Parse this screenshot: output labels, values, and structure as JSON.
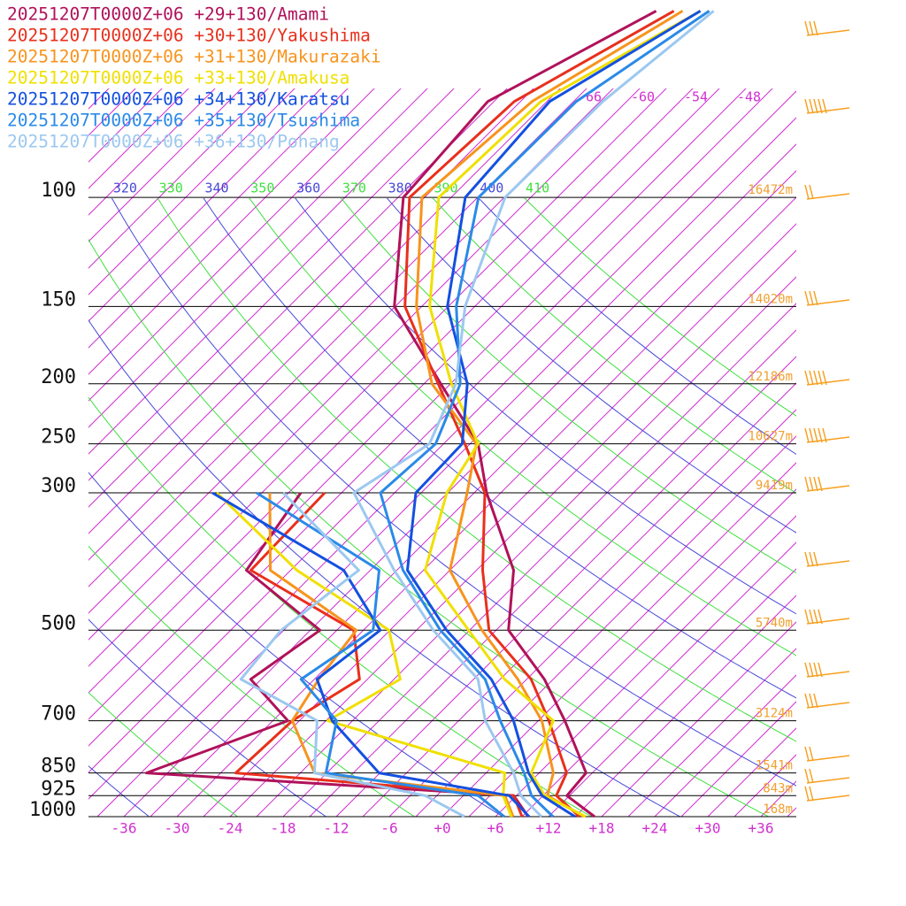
{
  "chart_data": {
    "type": "skewt",
    "ylim": [
      1000,
      48
    ],
    "log_y": true,
    "xlim": [
      -40,
      40
    ],
    "yticks": [
      100,
      150,
      200,
      250,
      300,
      500,
      700,
      850,
      925,
      1000
    ],
    "xticks": [
      -36,
      -30,
      -24,
      -18,
      -12,
      -6,
      {
        "value": 0,
        "label": "+0"
      },
      {
        "value": 6,
        "label": "+6"
      },
      {
        "value": 12,
        "label": "+12"
      },
      {
        "value": 18,
        "label": "+18"
      },
      {
        "value": 24,
        "label": "+24"
      },
      {
        "value": 30,
        "label": "+30"
      },
      {
        "value": 36,
        "label": "+36"
      }
    ],
    "isotherm_labels": [
      -66,
      -60,
      -54,
      -48
    ],
    "theta_labels": [
      320,
      330,
      340,
      350,
      360,
      370,
      380,
      390,
      400,
      410
    ],
    "theta_colors": [
      "#4848d8",
      "#40e040"
    ],
    "isotherm_color": "#d030d0",
    "height_labels": [
      {
        "value": 16472,
        "label": "16472m"
      },
      {
        "value": 14020,
        "label": "14020m"
      },
      {
        "value": 12186,
        "label": "12186m"
      },
      {
        "value": 10627,
        "label": "10627m"
      },
      {
        "value": 9419,
        "label": "9419m"
      },
      {
        "value": 5740,
        "label": "5740m"
      },
      {
        "value": 3124,
        "label": "3124m"
      },
      {
        "value": 1541,
        "label": "1541m"
      },
      {
        "value": 843,
        "label": "843m"
      },
      {
        "value": 168,
        "label": "168m"
      }
    ],
    "pressure_levels": [
      1000,
      925,
      850,
      700,
      600,
      500,
      400,
      300,
      250,
      200,
      150,
      100,
      70,
      50
    ],
    "dewpoint_levels": [
      1000,
      925,
      850,
      700,
      600,
      500,
      400,
      300
    ],
    "series": [
      {
        "name": "20251207T0000Z+06 +29+130/Amami",
        "color": "#b0125a",
        "temperature": [
          17.2,
          11.7,
          11.3,
          3.0,
          -4.0,
          -13.6,
          -19.8,
          -31.6,
          -38.1,
          -49.1,
          -63.1,
          -74.4,
          -75.7,
          -66.9
        ],
        "dewpoint": [
          9.7,
          5.7,
          -38.4,
          -28.3,
          -37.2,
          -34.9,
          -50.0,
          -52.6
        ]
      },
      {
        "name": "20251207T0000Z+06 +30+130/Yakushima",
        "color": "#e8301c",
        "temperature": [
          15.5,
          10.5,
          9.1,
          1.2,
          -5.5,
          -15.8,
          -23.3,
          -31.8,
          -39.6,
          -49.4,
          -61.9,
          -73.7,
          -72.7,
          -64.9
        ],
        "dewpoint": [
          9.0,
          5.7,
          -28.3,
          -27.8,
          -24.9,
          -31.1,
          -49.5,
          -49.9
        ]
      },
      {
        "name": "20251207T0000Z+06 +31+130/Makurazaki",
        "color": "#f7941d",
        "temperature": [
          16.0,
          9.5,
          7.6,
          0.4,
          -7.0,
          -16.6,
          -27.0,
          -33.8,
          -38.3,
          -50.1,
          -60.6,
          -72.3,
          -70.7,
          -63.9
        ],
        "dewpoint": [
          8.0,
          4.7,
          -19.4,
          -27.8,
          -29.5,
          -30.8,
          -47.3,
          -56.1
        ]
      },
      {
        "name": "20251207T0000Z+06 +33+130/Amakusa",
        "color": "#f0e000",
        "temperature": [
          16.2,
          9.2,
          5.1,
          1.7,
          -8.5,
          -18.1,
          -29.8,
          -36.1,
          -38.1,
          -47.9,
          -59.1,
          -70.4,
          -69.7,
          -61.9
        ],
        "dewpoint": [
          7.8,
          4.5,
          2.1,
          -23.8,
          -20.3,
          -27.1,
          -44.3,
          -62.1
        ]
      },
      {
        "name": "20251207T0000Z+06 +34+130/Karatsu",
        "color": "#1450e0",
        "temperature": [
          15.0,
          8.9,
          4.8,
          -2.8,
          -10.0,
          -20.6,
          -31.8,
          -39.6,
          -39.9,
          -46.1,
          -57.1,
          -67.4,
          -68.7,
          -61.9
        ],
        "dewpoint": [
          9.8,
          5.2,
          -12.1,
          -23.3,
          -29.7,
          -28.1,
          -39.0,
          -62.6
        ]
      },
      {
        "name": "20251207T0000Z+06 +35+130/Tsushima",
        "color": "#2a8ae8",
        "temperature": [
          12.5,
          7.7,
          4.3,
          -4.3,
          -10.7,
          -21.3,
          -32.3,
          -43.6,
          -42.9,
          -46.9,
          -56.1,
          -65.9,
          -65.7,
          -60.9
        ],
        "dewpoint": [
          7.0,
          1.7,
          -18.1,
          -22.8,
          -31.5,
          -28.9,
          -35.0,
          -57.6
        ]
      },
      {
        "name": "20251207T0000Z+06 +36+130/Pohang",
        "color": "#9cc8f0",
        "temperature": [
          11.2,
          6.5,
          3.1,
          -6.0,
          -11.5,
          -22.1,
          -33.3,
          -46.6,
          -43.6,
          -47.4,
          -55.1,
          -62.9,
          -62.7,
          -60.4
        ],
        "dewpoint": [
          2.5,
          -4.3,
          -19.4,
          -25.0,
          -38.3,
          -39.3,
          -37.3,
          -54.6
        ]
      }
    ]
  }
}
